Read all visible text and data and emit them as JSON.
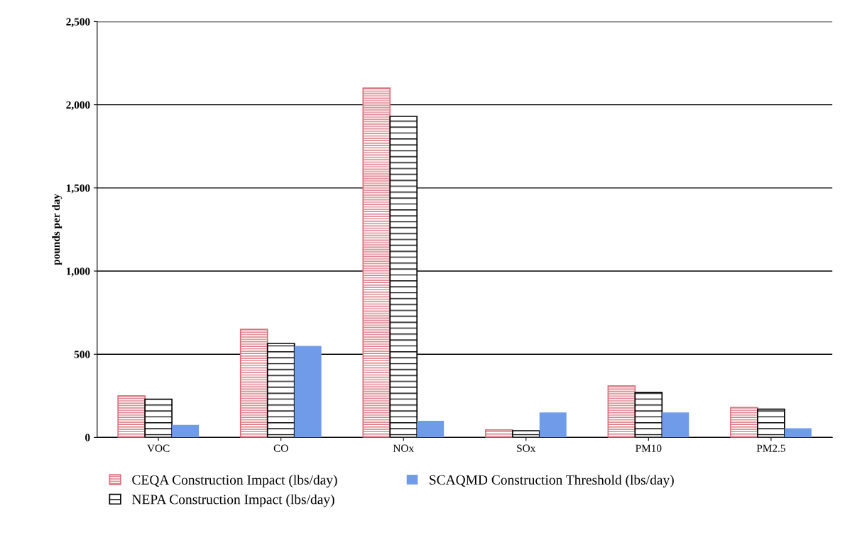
{
  "chart_data": {
    "type": "bar",
    "ylabel": "pounds per day",
    "categories": [
      "VOC",
      "CO",
      "NOx",
      "SOx",
      "PM10",
      "PM2.5"
    ],
    "series": [
      {
        "name": "CEQA Construction Impact (lbs/day)",
        "color": "#d9707c",
        "values": [
          250,
          650,
          2100,
          45,
          310,
          180
        ]
      },
      {
        "name": "NEPA Construction Impact (lbs/day)",
        "color": "#000000",
        "values": [
          230,
          565,
          1930,
          40,
          270,
          170
        ]
      },
      {
        "name": "SCAQMD Construction Threshold (lbs/day)",
        "color": "#6f9be8",
        "values": [
          75,
          550,
          100,
          150,
          150,
          55
        ]
      }
    ],
    "ylim": [
      0,
      2500
    ],
    "yticks": [
      0,
      500,
      {
        "value": 1000,
        "label": "1,000"
      },
      {
        "value": 1500,
        "label": "1,500"
      },
      {
        "value": 2000,
        "label": "2,000"
      },
      {
        "value": 2500,
        "label": "2,500"
      }
    ],
    "grid": "y",
    "legend": "bottom"
  }
}
